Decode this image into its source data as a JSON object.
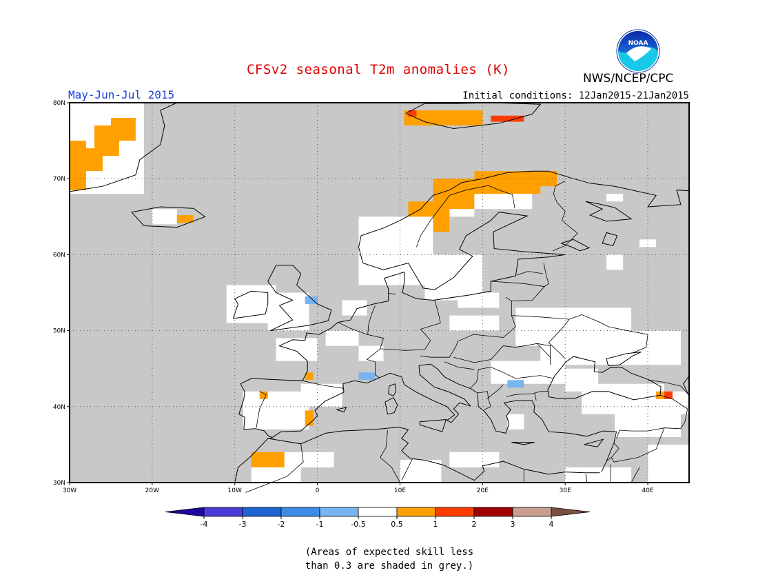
{
  "header": {
    "title": "CFSv2 seasonal T2m anomalies (K)",
    "agency": "NWS/NCEP/CPC",
    "logo_text": "NOAA",
    "period": "May-Jun-Jul 2015",
    "initial_conditions": "Initial conditions: 12Jan2015-21Jan2015"
  },
  "map": {
    "region": "Europe",
    "lon_range": [
      -30,
      45
    ],
    "lat_range": [
      30,
      80
    ],
    "lon_ticks": [
      "30W",
      "20W",
      "10W",
      "0",
      "10E",
      "20E",
      "30E",
      "40E"
    ],
    "lat_ticks": [
      "80N",
      "70N",
      "60N",
      "50N",
      "40N",
      "30N"
    ],
    "grid": "dotted",
    "no_skill_color": "#c8c8c8"
  },
  "colorbar": {
    "labels": [
      "-4",
      "-3",
      "-2",
      "-1",
      "-0.5",
      "0.5",
      "1",
      "2",
      "3",
      "4"
    ],
    "colors": [
      "#1e0aa0",
      "#4a3cd6",
      "#1e64d2",
      "#3c8ce6",
      "#78b4f0",
      "#ffffff",
      "#ffa000",
      "#ff3c00",
      "#a00000",
      "#c8a090",
      "#7a5040"
    ]
  },
  "footnote": {
    "line1": "(Areas of expected skill less",
    "line2": "than 0.3 are shaded in grey.)"
  }
}
